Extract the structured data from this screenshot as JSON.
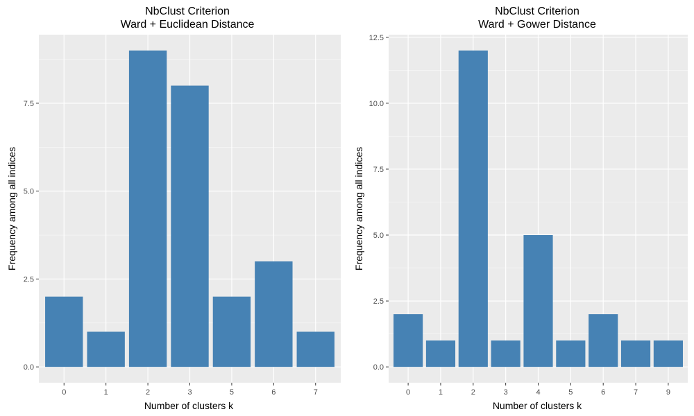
{
  "colors": {
    "panel_background": "#ebebeb",
    "gridline_major": "#ffffff",
    "bar_fill": "#4682b4",
    "tick_text": "#4d4d4d"
  },
  "chart_data": [
    {
      "type": "bar",
      "title": "NbClust Criterion",
      "subtitle": "Ward + Euclidean Distance",
      "xlabel": "Number of clusters k",
      "ylabel": "Frequency among all indices",
      "categories": [
        "0",
        "1",
        "2",
        "3",
        "5",
        "6",
        "7"
      ],
      "values": [
        2,
        1,
        9,
        8,
        2,
        3,
        1
      ],
      "ylim": [
        -0.45,
        9.45
      ],
      "yticks": [
        0,
        2.5,
        5,
        7.5
      ],
      "ytick_labels": [
        "0.0",
        "2.5",
        "5.0",
        "7.5"
      ],
      "grid": true,
      "legend": "none"
    },
    {
      "type": "bar",
      "title": "NbClust Criterion",
      "subtitle": "Ward + Gower Distance",
      "xlabel": "Number of clusters k",
      "ylabel": "Frequency among all indices",
      "categories": [
        "0",
        "1",
        "2",
        "3",
        "4",
        "5",
        "6",
        "7",
        "9"
      ],
      "values": [
        2,
        1,
        12,
        1,
        5,
        1,
        2,
        1,
        1
      ],
      "ylim": [
        -0.6,
        12.6
      ],
      "yticks": [
        0,
        2.5,
        5,
        7.5,
        10,
        12.5
      ],
      "ytick_labels": [
        "0.0",
        "2.5",
        "5.0",
        "7.5",
        "10.0",
        "12.5"
      ],
      "grid": true,
      "legend": "none"
    }
  ]
}
